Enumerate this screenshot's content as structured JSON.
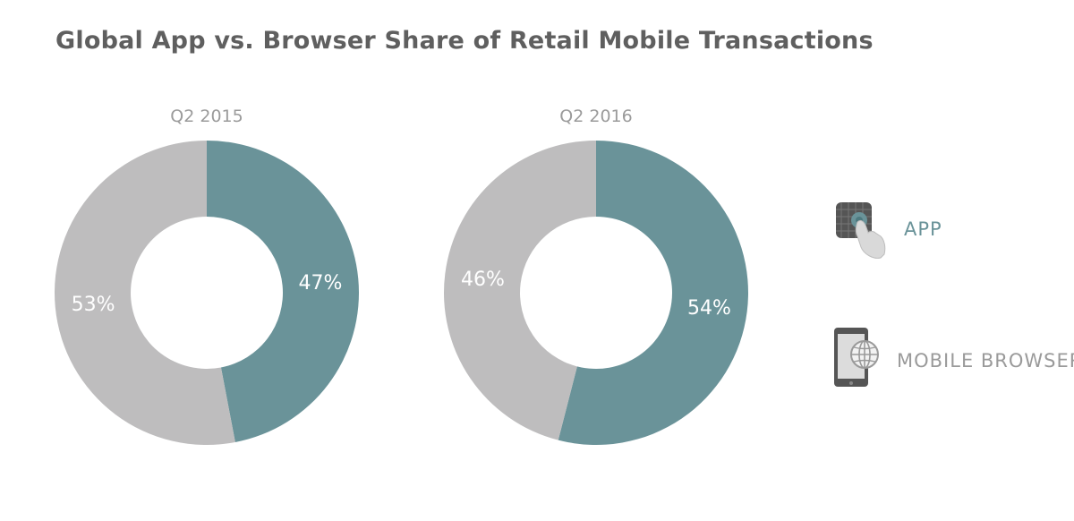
{
  "chart_data": {
    "type": "pie",
    "title": "Global App vs. Browser Share of Retail Mobile Transactions",
    "colors": {
      "app": "#6a9399",
      "browser": "#bebdbe"
    },
    "charts": [
      {
        "subtitle": "Q2 2015",
        "slices": [
          {
            "key": "app",
            "value": 47,
            "label": "47%"
          },
          {
            "key": "browser",
            "value": 53,
            "label": "53%"
          }
        ]
      },
      {
        "subtitle": "Q2 2016",
        "slices": [
          {
            "key": "app",
            "value": 54,
            "label": "54%"
          },
          {
            "key": "browser",
            "value": 46,
            "label": "46%"
          }
        ]
      }
    ],
    "legend": [
      {
        "key": "app",
        "label": "APP",
        "icon": "touch-app-icon"
      },
      {
        "key": "browser",
        "label": "MOBILE BROWSER",
        "icon": "mobile-browser-icon"
      }
    ]
  }
}
